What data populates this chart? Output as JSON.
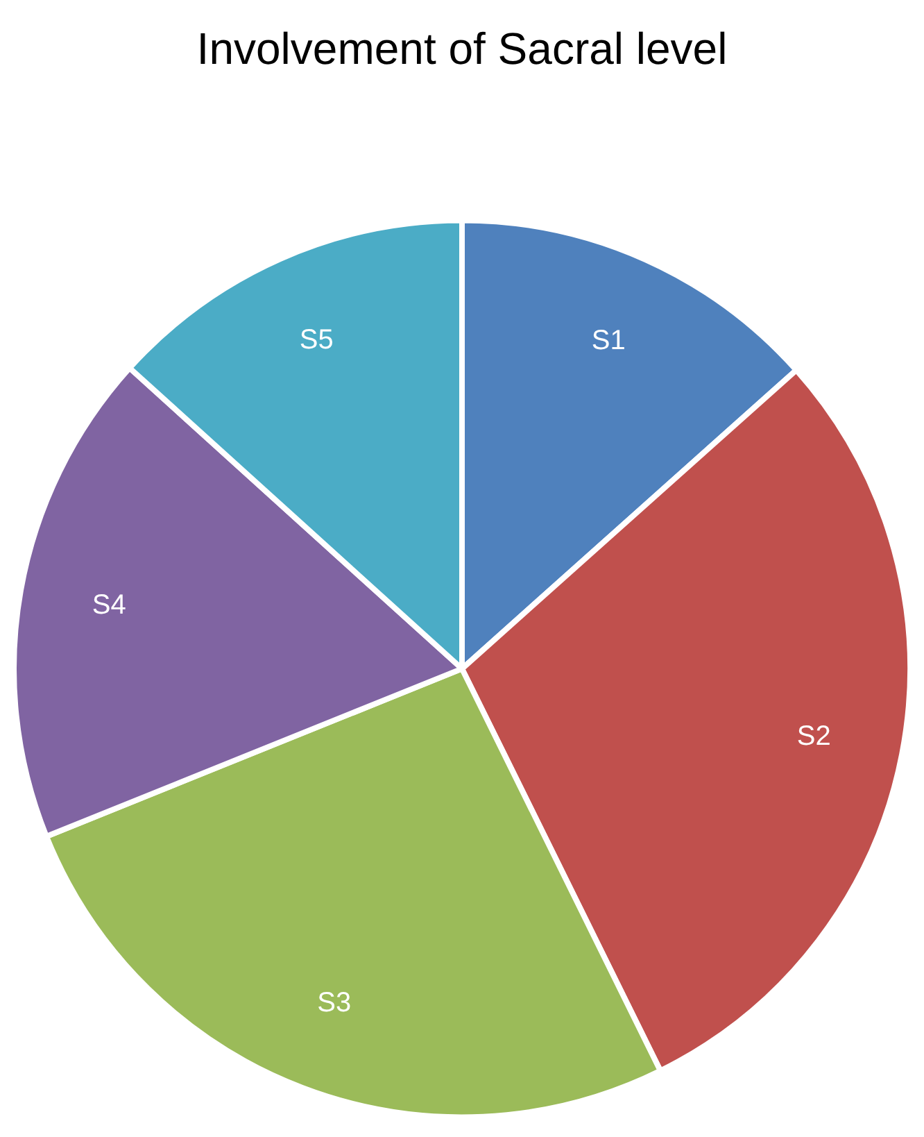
{
  "chart_data": {
    "type": "pie",
    "title": "Involvement of Sacral level",
    "categories": [
      "S1",
      "S2",
      "S3",
      "S4",
      "S5"
    ],
    "values": [
      13.4,
      29.3,
      26.2,
      17.8,
      13.3
    ],
    "colors": [
      "#4f81bd",
      "#c0504d",
      "#9bbb59",
      "#8064a2",
      "#4bacc6"
    ],
    "legend": false
  }
}
